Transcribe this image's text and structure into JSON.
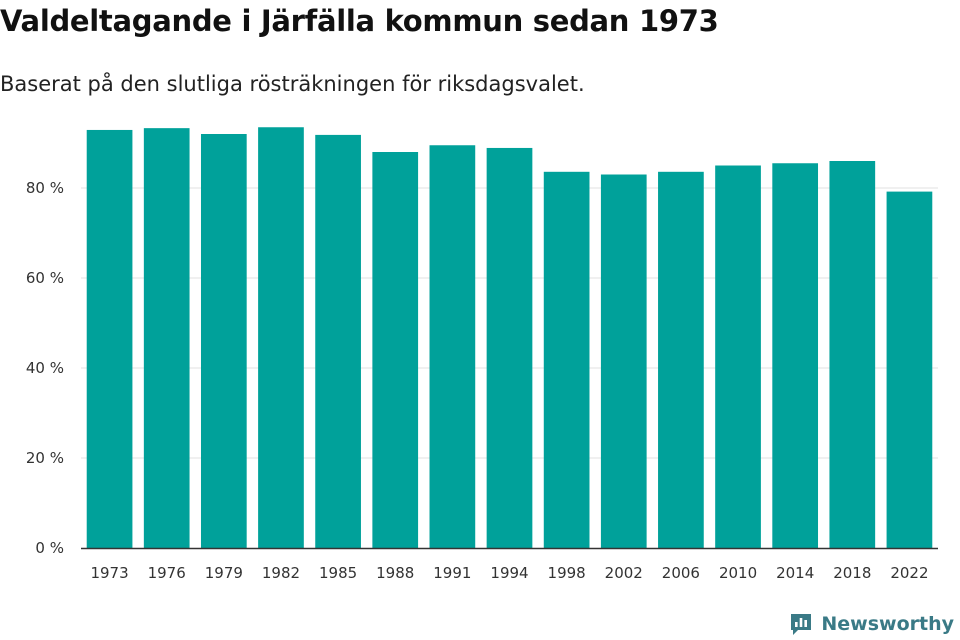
{
  "title": "Valdeltagande i Järfälla kommun sedan 1973",
  "subtitle": "Baserat på den slutliga rösträkningen för riksdagsvalet.",
  "brand": {
    "name": "Newsworthy",
    "icon": "newsworthy-logo-icon",
    "color": "#3a7a86"
  },
  "colors": {
    "bar": "#00a19a",
    "grid": "#e2e2e2",
    "axis": "#333333"
  },
  "chart_data": {
    "type": "bar",
    "title": "Valdeltagande i Järfälla kommun sedan 1973",
    "subtitle": "Baserat på den slutliga rösträkningen för riksdagsvalet.",
    "xlabel": "",
    "ylabel": "",
    "categories": [
      "1973",
      "1976",
      "1979",
      "1982",
      "1985",
      "1988",
      "1991",
      "1994",
      "1998",
      "2002",
      "2006",
      "2010",
      "2014",
      "2018",
      "2022"
    ],
    "values": [
      92.9,
      93.3,
      92.0,
      93.5,
      91.8,
      88.0,
      89.5,
      88.9,
      83.6,
      83.0,
      83.6,
      85.0,
      85.5,
      86.0,
      79.2
    ],
    "ylim": [
      0,
      100
    ],
    "yticks": [
      0,
      20,
      40,
      60,
      80
    ],
    "ytick_labels": [
      "0 %",
      "20 %",
      "40 %",
      "60 %",
      "80 %"
    ],
    "grid": true,
    "legend": "none"
  }
}
